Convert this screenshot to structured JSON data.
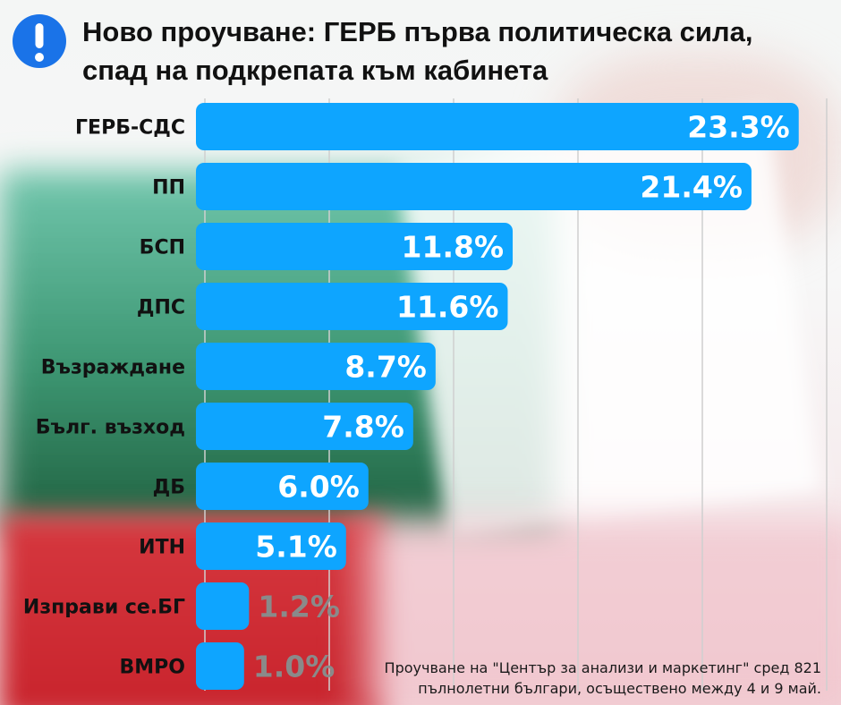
{
  "header": {
    "icon": "exclamation-circle-icon",
    "title_line1": "Ново проучване: ГЕРБ първа политическа сила,",
    "title_line2": "спад на подкрепата към кабинета"
  },
  "colors": {
    "bar": "#0ea5ff",
    "icon": "#1a73e8",
    "grid": "#cfcfcf",
    "value_outside": "#8a8a8a"
  },
  "chart_data": {
    "type": "bar",
    "orientation": "horizontal",
    "categories": [
      "ГЕРБ-СДС",
      "ПП",
      "БСП",
      "ДПС",
      "Възраждане",
      "Бълг. възход",
      "ДБ",
      "ИТН",
      "Изправи се.БГ",
      "ВМРО"
    ],
    "values": [
      23.3,
      21.4,
      11.8,
      11.6,
      8.7,
      7.8,
      6.0,
      5.1,
      1.2,
      1.0
    ],
    "value_labels": [
      "23.3%",
      "21.4%",
      "11.8%",
      "11.6%",
      "8.7%",
      "7.8%",
      "6.0%",
      "5.1%",
      "1.2%",
      "1.0%"
    ],
    "xlim": [
      0,
      25
    ],
    "grid": true,
    "unit": "%"
  },
  "footer": {
    "source_line1": "Проучване на \"Център за анализи и маркетинг\" сред 821",
    "source_line2": "пълнолетни българи, осъществено между 4 и 9 май."
  }
}
